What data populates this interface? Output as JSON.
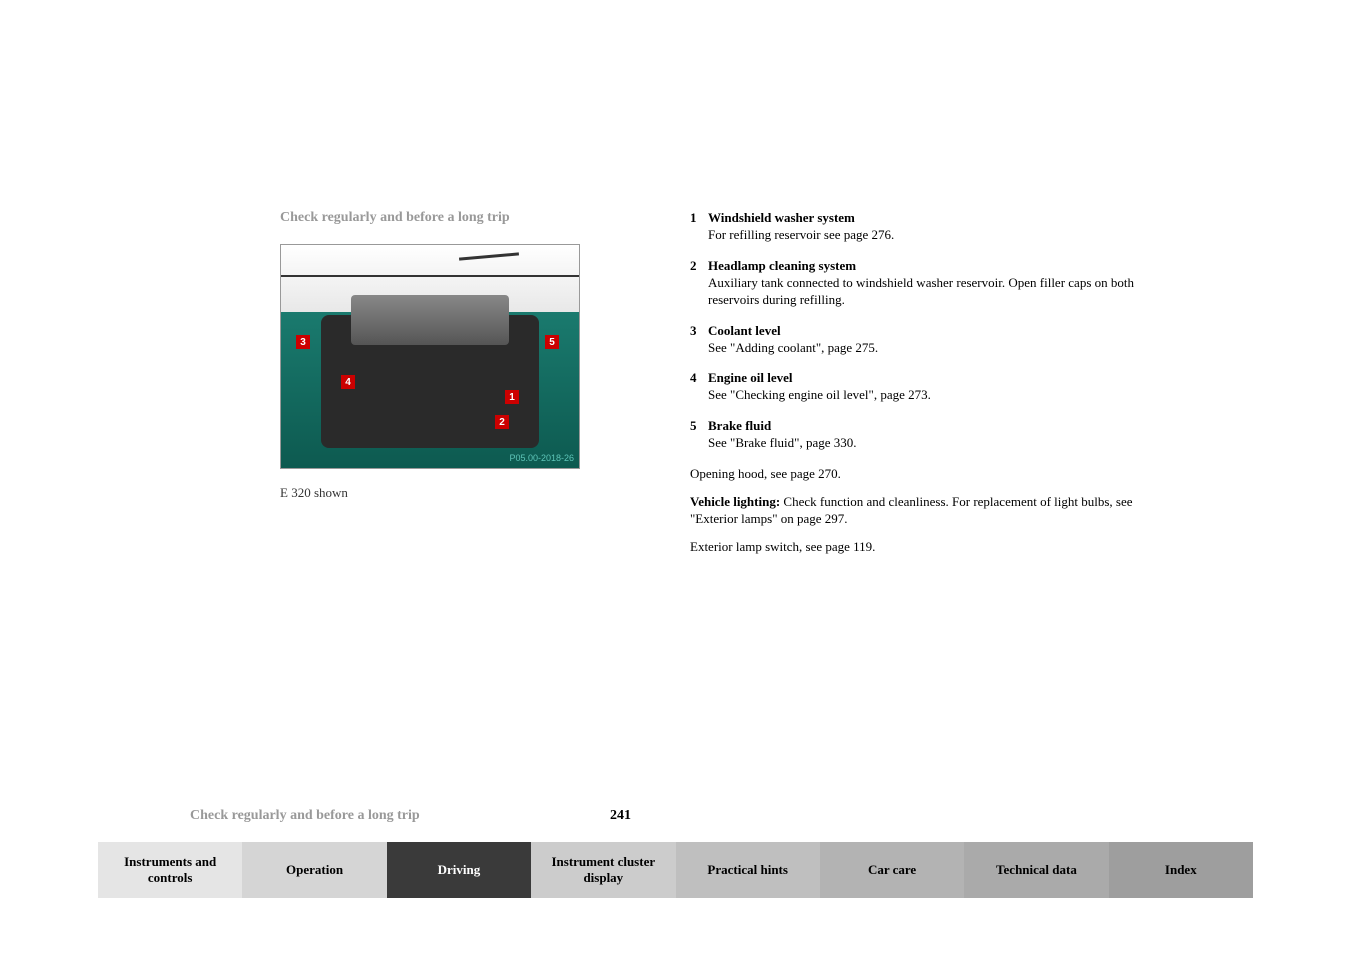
{
  "page": {
    "title": "Check regularly and before a long trip",
    "footer_title": "Check regularly and before a long trip",
    "page_number": "241"
  },
  "image": {
    "callouts": [
      "1",
      "2",
      "3",
      "4",
      "5"
    ],
    "id_text": "P05.00-2018-26",
    "caption": "E 320 shown"
  },
  "items": [
    {
      "num": "1",
      "title": "Windshield washer system",
      "desc": "For refilling reservoir see page 276."
    },
    {
      "num": "2",
      "title": "Headlamp cleaning system",
      "desc": "Auxiliary tank connected to windshield washer reservoir. Open filler caps on both reservoirs during refilling."
    },
    {
      "num": "3",
      "title": "Coolant level",
      "desc": "See \"Adding coolant\", page 275."
    },
    {
      "num": "4",
      "title": "Engine oil level",
      "desc": "See \"Checking engine oil level\", page 273."
    },
    {
      "num": "5",
      "title": "Brake fluid",
      "desc": "See \"Brake fluid\", page 330."
    }
  ],
  "paragraphs": {
    "opening_hood": "Opening hood, see page 270.",
    "vehicle_lighting_label": "Vehicle lighting:",
    "vehicle_lighting_text": " Check function and cleanliness. For replacement of light bulbs, see \"Exterior lamps\" on page 297.",
    "exterior_lamp": "Exterior lamp switch, see page 119."
  },
  "tabs": [
    {
      "label": "Instruments and controls",
      "style": "tab-light"
    },
    {
      "label": "Operation",
      "style": "tab-med"
    },
    {
      "label": "Driving",
      "style": "tab-dark"
    },
    {
      "label": "Instrument cluster display",
      "style": "tab-gray1"
    },
    {
      "label": "Practical hints",
      "style": "tab-gray2"
    },
    {
      "label": "Car care",
      "style": "tab-gray3"
    },
    {
      "label": "Technical data",
      "style": "tab-gray4"
    },
    {
      "label": "Index",
      "style": "tab-gray5"
    }
  ],
  "colors": {
    "muted_title": "#999999",
    "callout_bg": "#cc0000",
    "active_tab_bg": "#3a3a3a"
  }
}
